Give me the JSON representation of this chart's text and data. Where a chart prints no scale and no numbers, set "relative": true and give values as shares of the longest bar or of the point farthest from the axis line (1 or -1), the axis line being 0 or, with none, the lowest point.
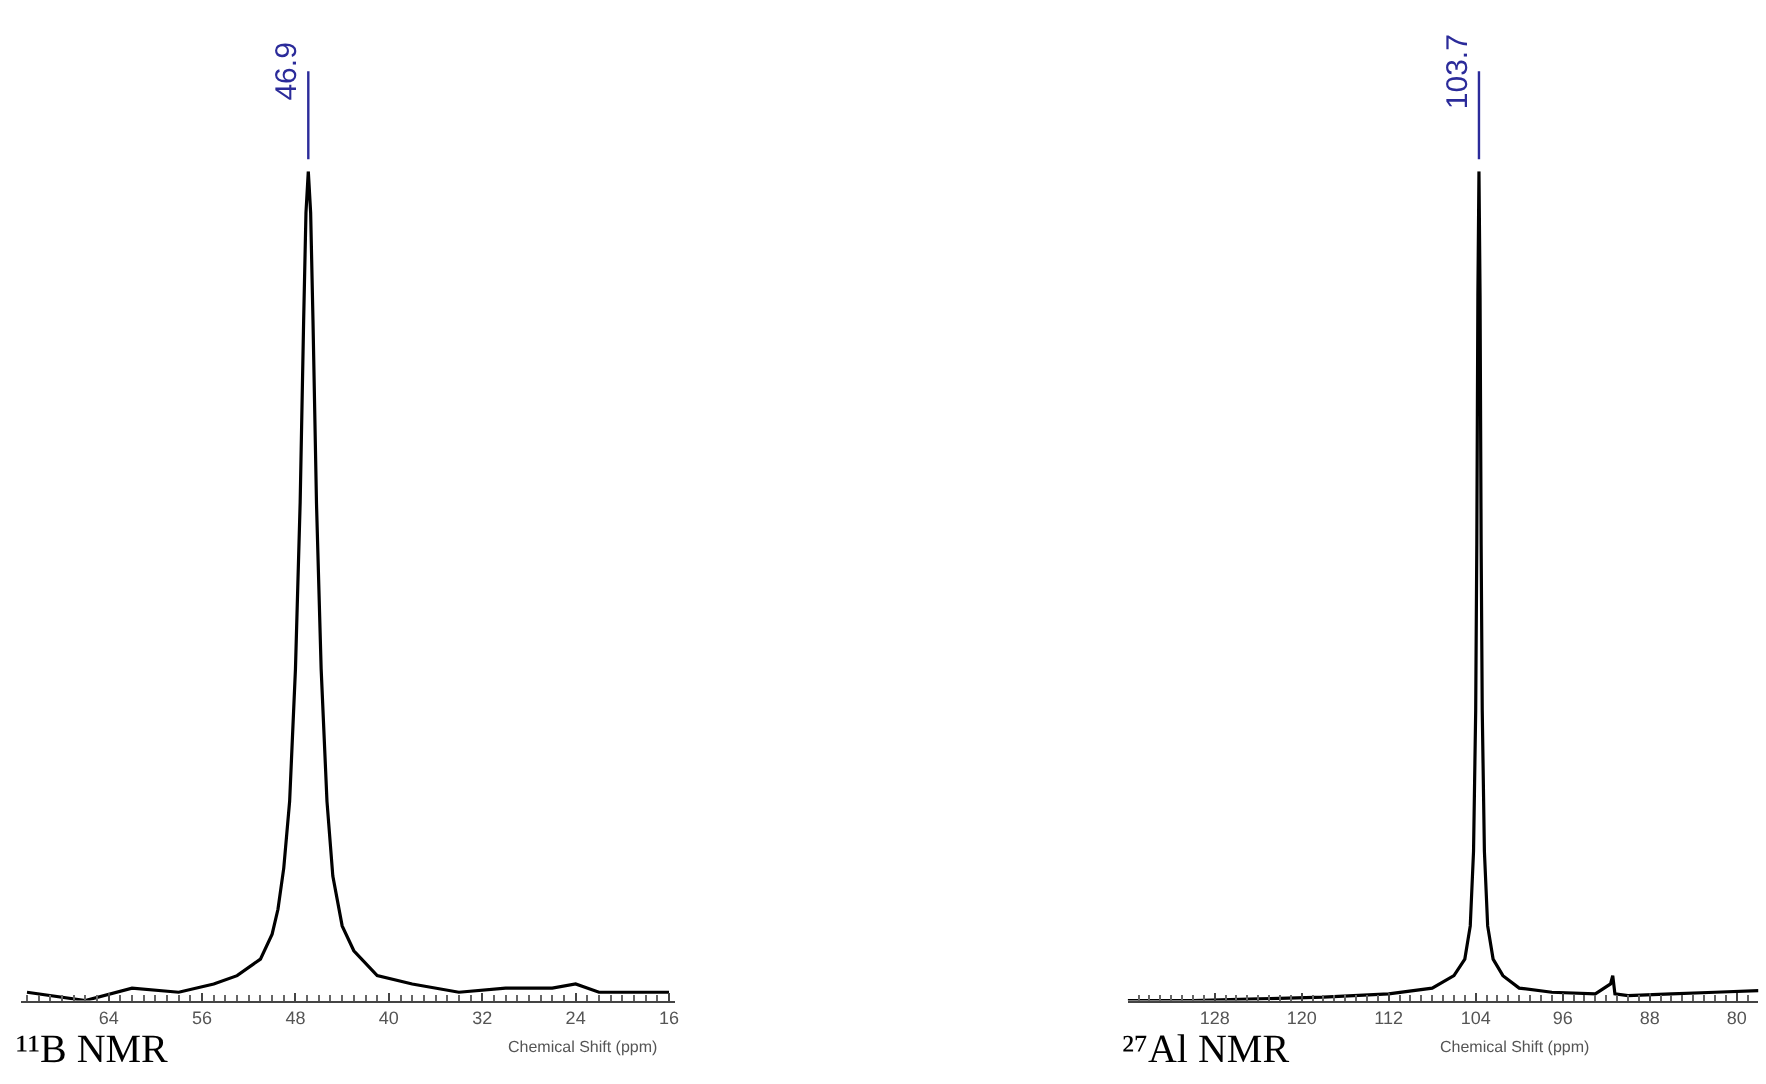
{
  "chart_data": [
    {
      "type": "line",
      "title": "¹¹B NMR",
      "xlabel": "Chemical Shift (ppm)",
      "relative": true,
      "xlim": [
        71.5,
        15.5
      ],
      "xticks": [
        64,
        56,
        48,
        40,
        32,
        24,
        16
      ],
      "marker": "none",
      "line_style": "solid",
      "annotations": [
        {
          "text": "46.9",
          "x": 46.9,
          "y": 1
        }
      ],
      "series": [
        {
          "color": "#000000",
          "x": [
            71,
            66,
            62,
            58,
            55,
            53,
            51,
            50,
            49.5,
            49,
            48.5,
            48,
            47.6,
            47.3,
            47.1,
            46.9,
            46.7,
            46.5,
            46.2,
            45.8,
            45.3,
            44.8,
            44,
            43,
            41,
            38,
            34,
            30,
            26,
            24,
            22,
            19,
            16
          ],
          "values": [
            0.01,
            0.0,
            0.015,
            0.01,
            0.02,
            0.03,
            0.05,
            0.08,
            0.11,
            0.16,
            0.24,
            0.4,
            0.6,
            0.82,
            0.95,
            1,
            0.95,
            0.82,
            0.6,
            0.4,
            0.24,
            0.15,
            0.09,
            0.06,
            0.03,
            0.02,
            0.01,
            0.015,
            0.015,
            0.02,
            0.01,
            0.01,
            0.01
          ]
        }
      ]
    },
    {
      "type": "line",
      "title": "²⁷Al NMR",
      "xlabel": "Chemical Shift (ppm)",
      "relative": true,
      "xlim": [
        136,
        78
      ],
      "xticks": [
        128,
        120,
        112,
        104,
        96,
        88,
        80
      ],
      "marker": "none",
      "line_style": "solid",
      "annotations": [
        {
          "text": "103.7",
          "x": 103.7,
          "y": 1
        }
      ],
      "series": [
        {
          "color": "#000000",
          "x": [
            136,
            130,
            124,
            118,
            112,
            108,
            106,
            105,
            104.5,
            104.2,
            104,
            103.9,
            103.8,
            103.7,
            103.6,
            103.5,
            103.4,
            103.2,
            102.9,
            102.4,
            101.5,
            100,
            97,
            93,
            91.6,
            91.4,
            91.2,
            90,
            86,
            82,
            78
          ],
          "values": [
            0,
            0,
            0.002,
            0.004,
            0.008,
            0.015,
            0.03,
            0.05,
            0.09,
            0.18,
            0.35,
            0.55,
            0.85,
            1,
            0.85,
            0.55,
            0.35,
            0.18,
            0.09,
            0.05,
            0.03,
            0.015,
            0.01,
            0.008,
            0.02,
            0.03,
            0.008,
            0.006,
            0.008,
            0.01,
            0.012
          ]
        }
      ]
    }
  ]
}
